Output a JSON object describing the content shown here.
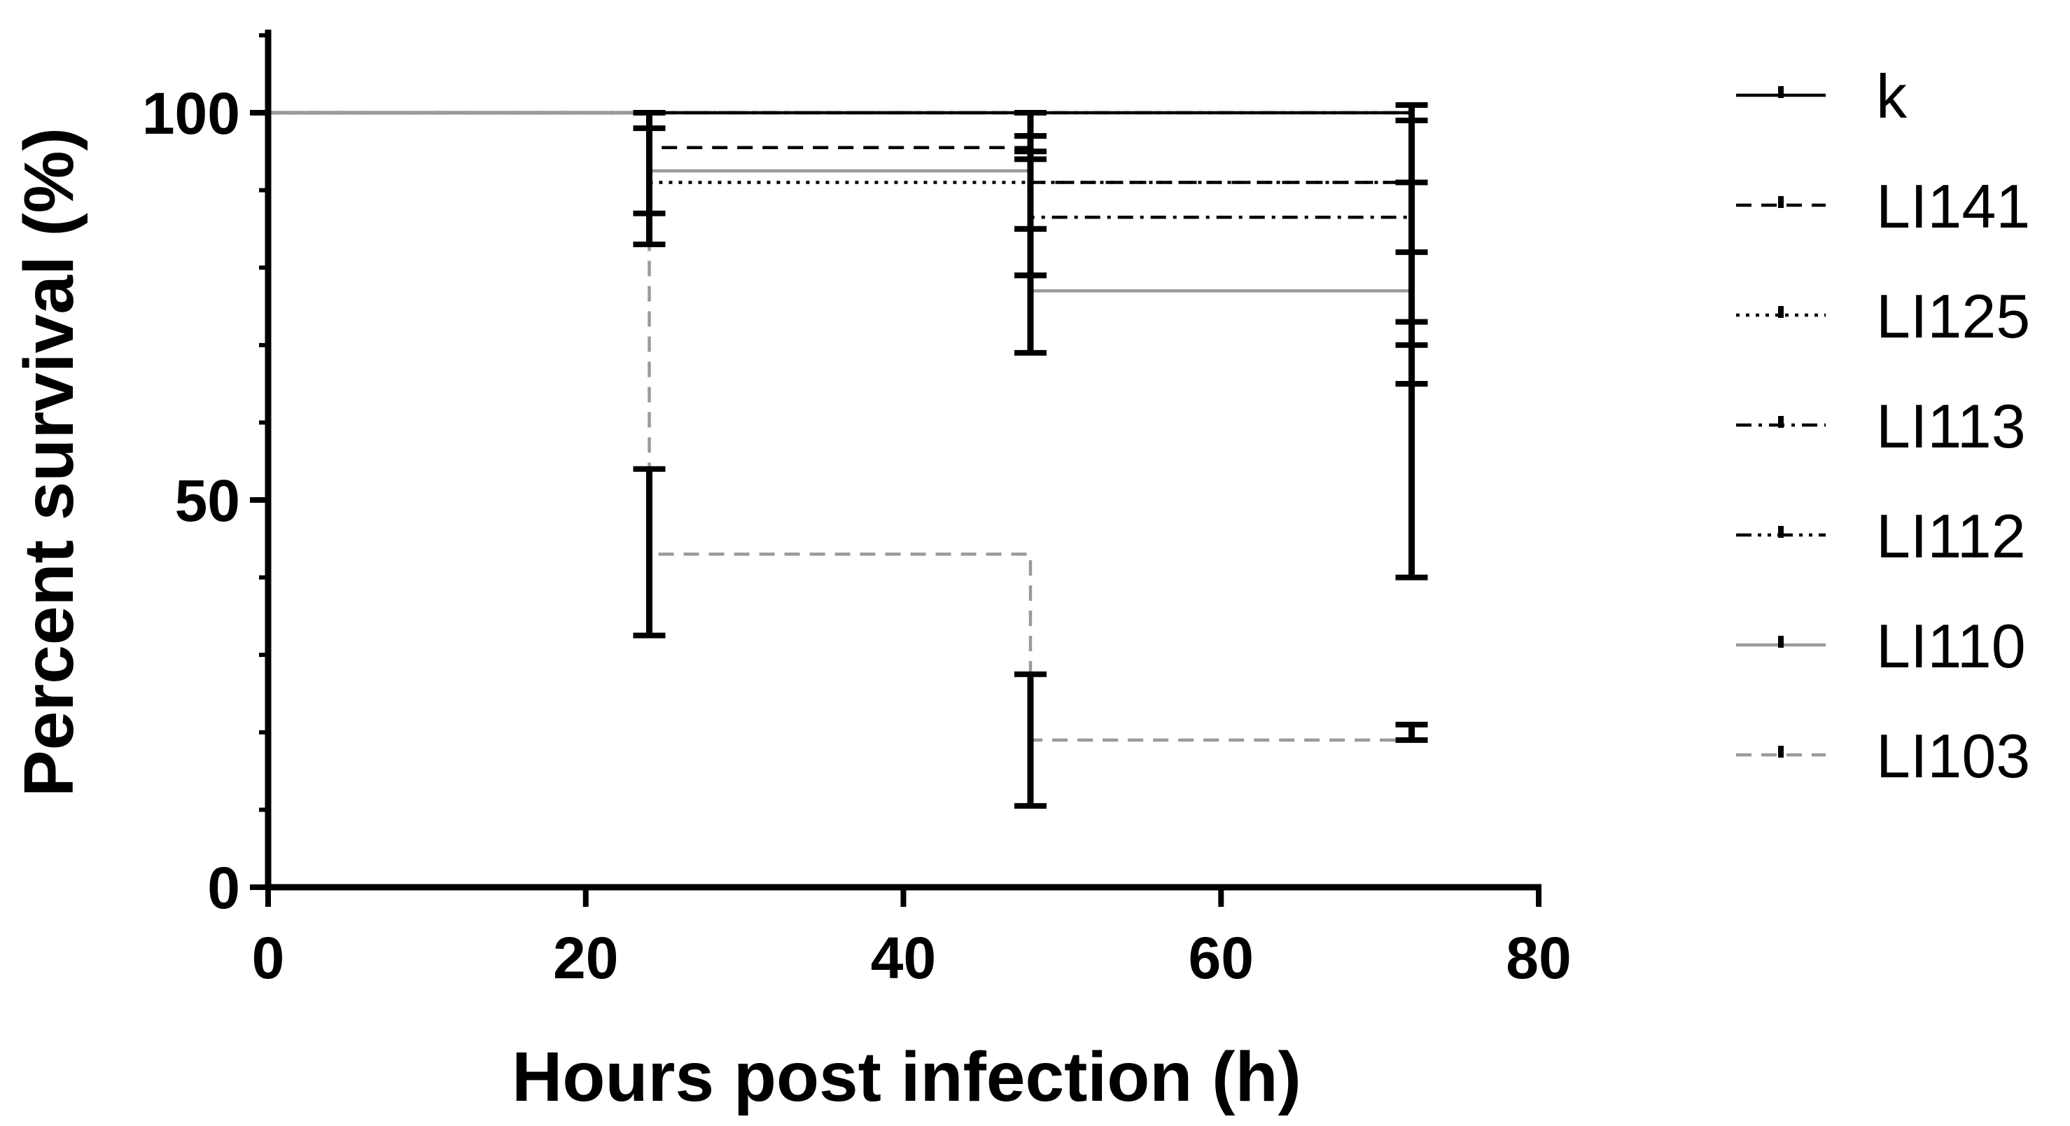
{
  "chart_data": {
    "type": "line",
    "subtype": "kaplan-meier step survival curves with error bars",
    "title": "",
    "xlabel": "Hours post infection (h)",
    "ylabel": "Percent survival (%)",
    "xlim": [
      0,
      80
    ],
    "ylim": [
      0,
      110
    ],
    "x_ticks": [
      0,
      20,
      40,
      60,
      80
    ],
    "y_ticks": [
      0,
      50,
      100
    ],
    "legend_position": "right",
    "series": [
      {
        "name": "k",
        "color": "#000000",
        "dash": "solid",
        "points": [
          {
            "x": 0,
            "y": 100
          },
          {
            "x": 72,
            "y": 100,
            "err_low": 91,
            "err_high": 101
          }
        ]
      },
      {
        "name": "LI141",
        "color": "#000000",
        "dash": "dashed",
        "points": [
          {
            "x": 0,
            "y": 100
          },
          {
            "x": 24,
            "y": 95.5,
            "err_low": 87,
            "err_high": 100
          },
          {
            "x": 48,
            "y": 91,
            "err_low": 79,
            "err_high": 97
          },
          {
            "x": 72,
            "y": 91,
            "err_low": 73,
            "err_high": 99
          }
        ]
      },
      {
        "name": "LI125",
        "color": "#000000",
        "dash": "dotted",
        "points": [
          {
            "x": 0,
            "y": 100
          },
          {
            "x": 24,
            "y": 91,
            "err_low": 83,
            "err_high": 98
          },
          {
            "x": 48,
            "y": 91,
            "err_low": 85,
            "err_high": 95
          },
          {
            "x": 72,
            "y": 90,
            "err_low": 82,
            "err_high": 91
          }
        ]
      },
      {
        "name": "LI113",
        "color": "#000000",
        "dash": "dashdot",
        "points": [
          {
            "x": 0,
            "y": 100
          },
          {
            "x": 48,
            "y": 86.5,
            "err_low": 79,
            "err_high": 94
          },
          {
            "x": 72,
            "y": 86.5,
            "err_low": 70,
            "err_high": 91
          }
        ]
      },
      {
        "name": "LI112",
        "color": "#000000",
        "dash": "dashdotdot",
        "points": [
          {
            "x": 0,
            "y": 100
          },
          {
            "x": 48,
            "y": 100,
            "err_low": 97,
            "err_high": 100
          },
          {
            "x": 72,
            "y": 90,
            "err_low": 65,
            "err_high": 99
          }
        ]
      },
      {
        "name": "LI110",
        "color": "#9a9a9a",
        "dash": "solid",
        "points": [
          {
            "x": 0,
            "y": 100
          },
          {
            "x": 24,
            "y": 92.5,
            "err_low": 83,
            "err_high": 100
          },
          {
            "x": 48,
            "y": 77,
            "err_low": 69,
            "err_high": 85
          },
          {
            "x": 72,
            "y": 77,
            "err_low": 40,
            "err_high": 65
          }
        ]
      },
      {
        "name": "LI103",
        "color": "#9a9a9a",
        "dash": "dashed",
        "points": [
          {
            "x": 0,
            "y": 100
          },
          {
            "x": 24,
            "y": 43,
            "err_low": 32.5,
            "err_high": 54
          },
          {
            "x": 48,
            "y": 19,
            "err_low": 10.5,
            "err_high": 27.5
          },
          {
            "x": 72,
            "y": 19,
            "err_low": 19,
            "err_high": 21
          }
        ]
      }
    ]
  }
}
